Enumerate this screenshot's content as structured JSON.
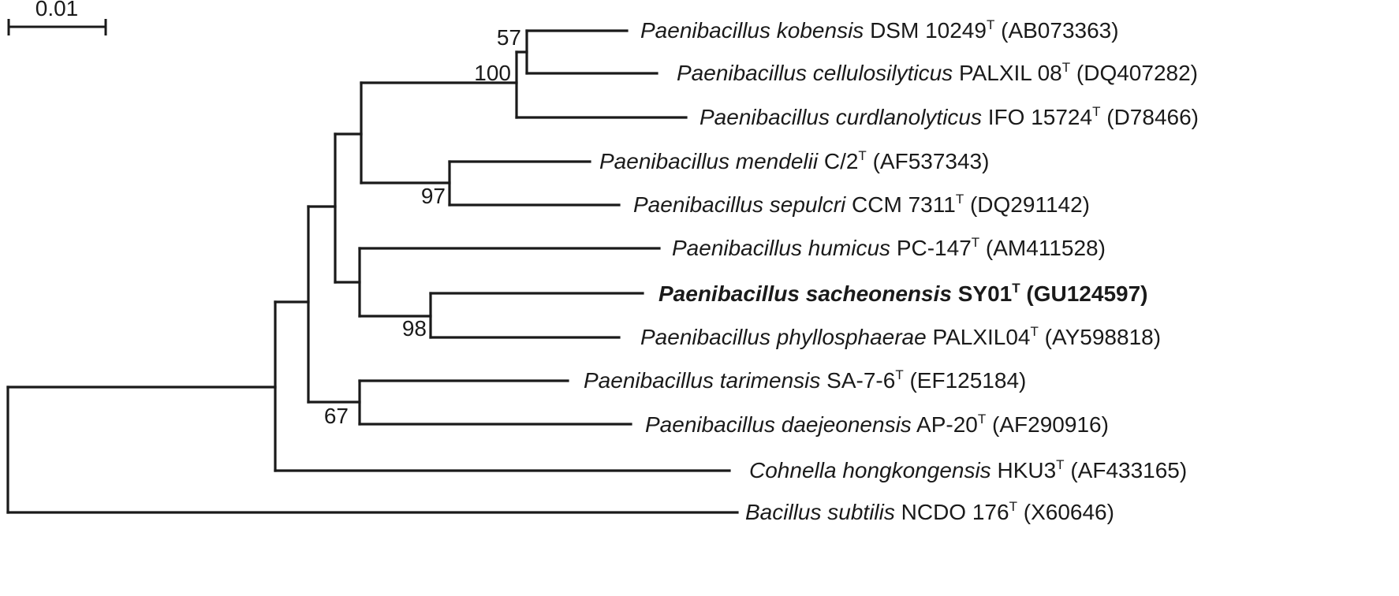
{
  "scale_bar": {
    "label": "0.01"
  },
  "tree": {
    "taxa": [
      {
        "genus": "Paenibacillus",
        "species": "kobensis",
        "strain": "DSM 10249",
        "type_mark": "T",
        "accession": "(AB073363)",
        "bold": false
      },
      {
        "genus": "Paenibacillus",
        "species": "cellulosilyticus",
        "strain": "PALXIL 08",
        "type_mark": "T",
        "accession": "(DQ407282)",
        "bold": false
      },
      {
        "genus": "Paenibacillus",
        "species": "curdlanolyticus",
        "strain": "IFO 15724",
        "type_mark": "T",
        "accession": "(D78466)",
        "bold": false
      },
      {
        "genus": "Paenibacillus",
        "species": "mendelii",
        "strain": "C/2",
        "type_mark": "T",
        "accession": "(AF537343)",
        "bold": false
      },
      {
        "genus": "Paenibacillus",
        "species": "sepulcri",
        "strain": "CCM 7311",
        "type_mark": "T",
        "accession": "(DQ291142)",
        "bold": false
      },
      {
        "genus": "Paenibacillus",
        "species": "humicus",
        "strain": "PC-147",
        "type_mark": "T",
        "accession": "(AM411528)",
        "bold": false
      },
      {
        "genus": "Paenibacillus",
        "species": "sacheonensis",
        "strain": "SY01",
        "type_mark": "T",
        "accession": "(GU124597)",
        "bold": true
      },
      {
        "genus": "Paenibacillus",
        "species": "phyllosphaerae",
        "strain": "PALXIL04",
        "type_mark": "T",
        "accession": "(AY598818)",
        "bold": false
      },
      {
        "genus": "Paenibacillus",
        "species": "tarimensis",
        "strain": "SA-7-6",
        "type_mark": "T",
        "accession": "(EF125184)",
        "bold": false
      },
      {
        "genus": "Paenibacillus",
        "species": "daejeonensis",
        "strain": "AP-20",
        "type_mark": "T",
        "accession": "(AF290916)",
        "bold": false
      },
      {
        "genus": "Cohnella",
        "species": "hongkongensis",
        "strain": "HKU3",
        "type_mark": "T",
        "accession": "(AF433165)",
        "bold": false
      },
      {
        "genus": "Bacillus",
        "species": "subtilis",
        "strain": "NCDO 176",
        "type_mark": "T",
        "accession": "(X60646)",
        "bold": false
      }
    ],
    "bootstrap": [
      "57",
      "100",
      "97",
      "98",
      "67"
    ]
  }
}
